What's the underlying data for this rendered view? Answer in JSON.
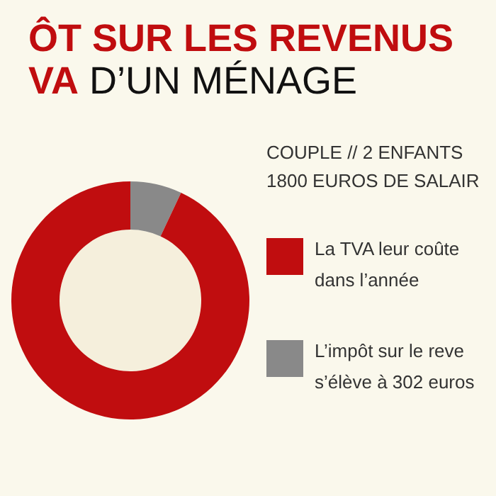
{
  "chart_data": {
    "type": "donut",
    "title": "ÔT SUR LES REVENUS\nVA D’UN MÉNAGE",
    "subtitle": "COUPLE // 2 ENFANTS\n1800 EUROS DE SALAIR",
    "categories": [
      "L’impôt sur le reve\ns’élève à 302 euros",
      "La TVA leur coûte\ndans l’année"
    ],
    "values": [
      7,
      93
    ],
    "colors": [
      "#898989",
      "#c00d0f"
    ],
    "legend": "right"
  }
}
